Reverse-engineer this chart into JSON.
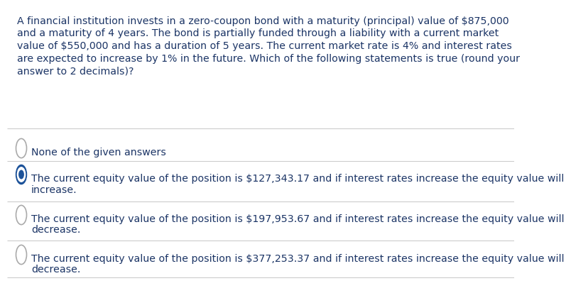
{
  "background_color": "#ffffff",
  "text_color": "#1c3566",
  "question_text": "A financial institution invests in a zero-coupon bond with a maturity (principal) value of $875,000\nand a maturity of 4 years. The bond is partially funded through a liability with a current market\nvalue of $550,000 and has a duration of 5 years. The current market rate is 4% and interest rates\nare expected to increase by 1% in the future. Which of the following statements is true (round your\nanswer to 2 decimals)?",
  "options": [
    {
      "text": "None of the given answers",
      "selected": false
    },
    {
      "text": "The current equity value of the position is $127,343.17 and if interest rates increase the equity value will\nincrease.",
      "selected": true
    },
    {
      "text": "The current equity value of the position is $197,953.67 and if interest rates increase the equity value will\ndecrease.",
      "selected": false
    },
    {
      "text": "The current equity value of the position is $377,253.37 and if interest rates increase the equity value will\ndecrease.",
      "selected": false
    }
  ],
  "font_size_question": 10.2,
  "font_size_options": 10.2,
  "separator_color": "#cccccc",
  "circle_selected_outer": "#1c5299",
  "circle_selected_inner": "#ffffff",
  "circle_selected_dot": "#1c5299",
  "circle_unselected_edge": "#aaaaaa",
  "line_color": "#cccccc"
}
